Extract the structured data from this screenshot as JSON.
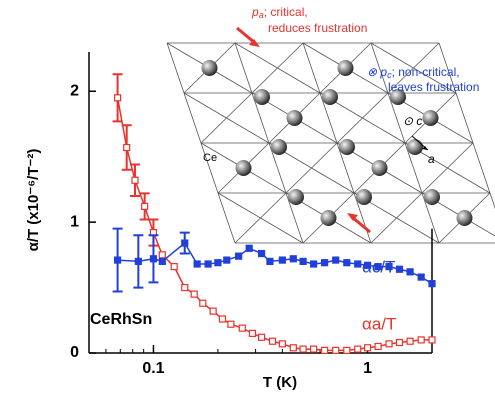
{
  "chart_data": {
    "type": "line",
    "xlabel": "T (K)",
    "ylabel": "α/T (x10⁻⁶/T⁻²)",
    "xlog": true,
    "xlim": [
      0.05,
      2
    ],
    "xticks": [
      0.1,
      1
    ],
    "xminorticks": [
      0.06,
      0.07,
      0.08,
      0.09,
      0.2,
      0.3,
      0.4,
      0.5,
      0.6,
      0.7,
      0.8,
      0.9,
      2
    ],
    "ylim": [
      0,
      2.3
    ],
    "yticks": [
      0,
      1,
      2
    ],
    "series": [
      {
        "name": "αa/T",
        "color": "#e8332e",
        "marker": "open-square",
        "x": [
          0.068,
          0.075,
          0.082,
          0.091,
          0.1,
          0.11,
          0.125,
          0.14,
          0.155,
          0.17,
          0.19,
          0.21,
          0.23,
          0.26,
          0.29,
          0.32,
          0.36,
          0.4,
          0.45,
          0.5,
          0.56,
          0.63,
          0.71,
          0.8,
          0.9,
          1.0,
          1.12,
          1.26,
          1.41,
          1.58,
          1.78,
          2.0
        ],
        "values": [
          1.95,
          1.57,
          1.32,
          1.12,
          0.92,
          0.75,
          0.66,
          0.5,
          0.45,
          0.38,
          0.32,
          0.26,
          0.22,
          0.19,
          0.15,
          0.12,
          0.09,
          0.07,
          0.04,
          0.03,
          0.03,
          0.02,
          0.02,
          0.02,
          0.03,
          0.04,
          0.05,
          0.07,
          0.08,
          0.09,
          0.1,
          0.1
        ],
        "errors": [
          0.18,
          0.17,
          0.12,
          0.1,
          0.1,
          null,
          null,
          null,
          null,
          null,
          null,
          null,
          null,
          null,
          null,
          null,
          null,
          null,
          null,
          null,
          null,
          null,
          null,
          null,
          null,
          null,
          null,
          null,
          null,
          null,
          null,
          null
        ]
      },
      {
        "name": "αc/T",
        "color": "#2140d8",
        "marker": "filled-square",
        "x": [
          0.068,
          0.085,
          0.1,
          0.11,
          0.14,
          0.16,
          0.18,
          0.2,
          0.22,
          0.25,
          0.28,
          0.32,
          0.35,
          0.4,
          0.45,
          0.5,
          0.56,
          0.63,
          0.71,
          0.8,
          0.9,
          1.0,
          1.12,
          1.26,
          1.41,
          1.58,
          1.78,
          2.0
        ],
        "values": [
          0.71,
          0.7,
          0.72,
          0.7,
          0.84,
          0.68,
          0.68,
          0.69,
          0.71,
          0.74,
          0.8,
          0.76,
          0.7,
          0.71,
          0.72,
          0.7,
          0.68,
          0.69,
          0.71,
          0.69,
          0.68,
          0.67,
          0.66,
          0.66,
          0.64,
          0.62,
          0.58,
          0.53
        ],
        "errors": [
          0.24,
          0.2,
          0.18,
          null,
          0.08,
          null,
          null,
          null,
          null,
          null,
          null,
          null,
          null,
          null,
          null,
          null,
          null,
          null,
          null,
          null,
          null,
          null,
          null,
          null,
          null,
          null,
          null,
          null
        ]
      }
    ],
    "sample": "CeRhSn",
    "inset": {
      "pa_symbol": "p",
      "pa_sub": "a",
      "pa_line1": "; critical,",
      "pa_line2": "reduces frustration",
      "pc_symbol": "⊗ p",
      "pc_sub": "c",
      "pc_line1": "; non-critical,",
      "pc_line2": "leaves frustration",
      "c_axis": "⊙ c",
      "a_axis": "a",
      "atom": "Ce"
    }
  }
}
